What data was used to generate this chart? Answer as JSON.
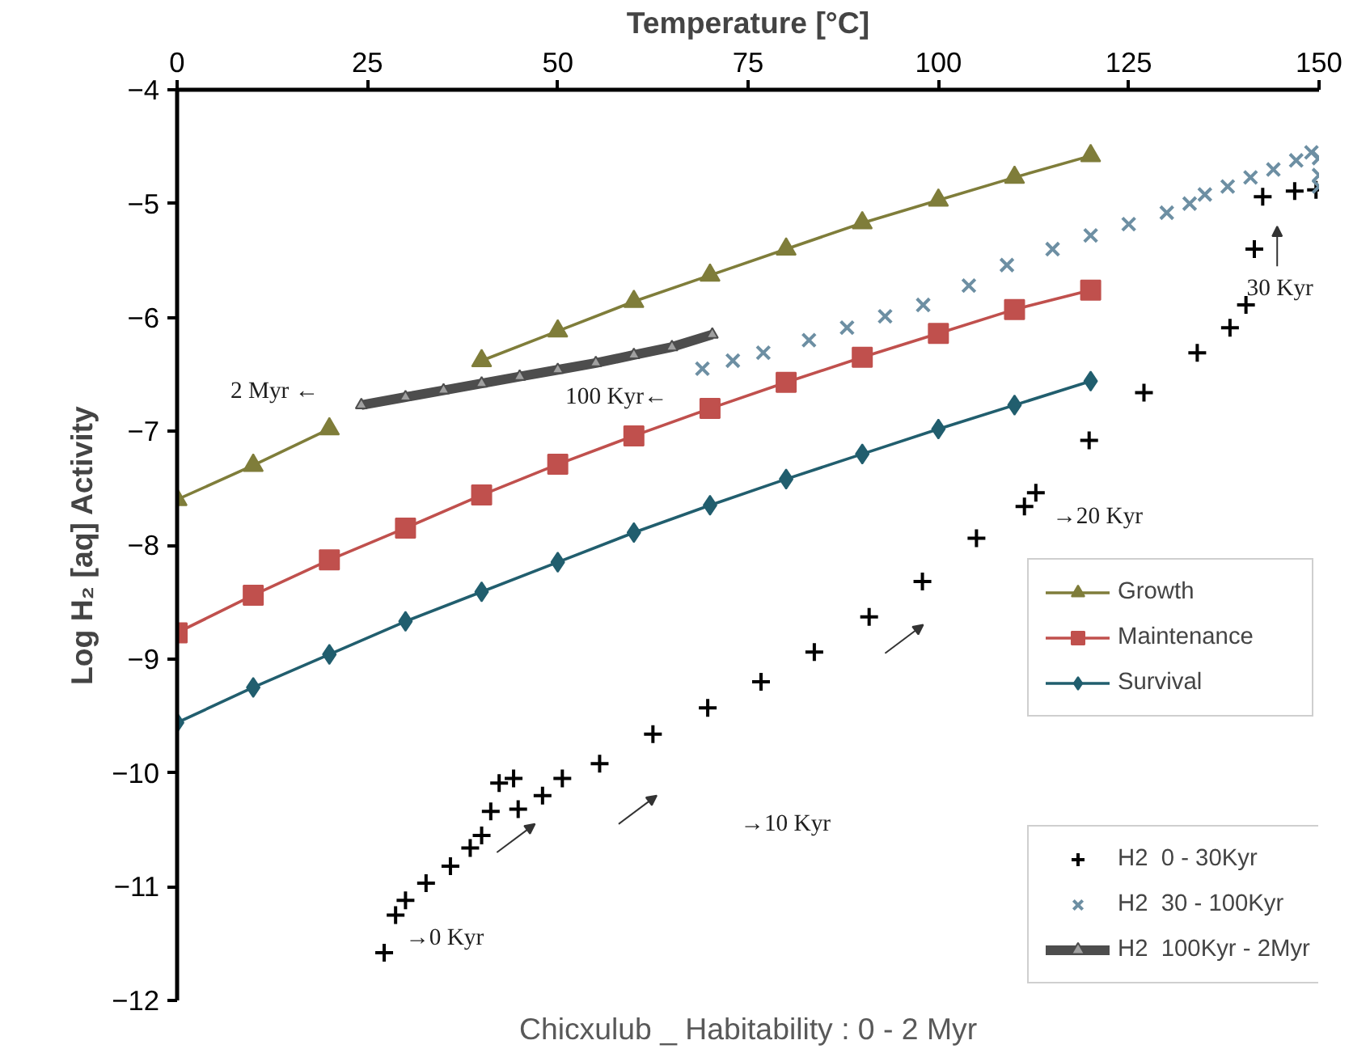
{
  "chart_data": {
    "type": "line",
    "title": "Chicxulub _ Habitability : 0 - 2 Myr",
    "xlabel": "Temperature [°C]",
    "ylabel": "Log H₂ [aq] Activity",
    "xlim": [
      0,
      150
    ],
    "xticks": [
      0,
      25,
      50,
      75,
      100,
      125,
      150
    ],
    "ylim": [
      -12,
      -4
    ],
    "yticks": [
      -12,
      -11,
      -10,
      -9,
      -8,
      -7,
      -6,
      -5,
      -4
    ],
    "grid": false,
    "legend": "right",
    "x": [
      0,
      10,
      20,
      30,
      40,
      50,
      60,
      70,
      80,
      90,
      100,
      110,
      120
    ],
    "series": [
      {
        "name": "Growth",
        "marker": "triangle",
        "line_style": "solid",
        "color": "#7f7d3a",
        "values": [
          -7.6,
          -7.3,
          -6.98,
          null,
          -6.38,
          -6.12,
          -5.86,
          -5.63,
          -5.4,
          -5.17,
          -4.97,
          -4.77,
          -4.58
        ]
      },
      {
        "name": "Maintenance",
        "marker": "square",
        "line_style": "solid",
        "color": "#c0504d",
        "values": [
          -8.77,
          -8.44,
          -8.13,
          -7.85,
          -7.56,
          -7.29,
          -7.04,
          -6.8,
          -6.57,
          -6.35,
          -6.14,
          -5.93,
          -5.76
        ]
      },
      {
        "name": "Survival",
        "marker": "diamond",
        "line_style": "solid",
        "color": "#215e6e",
        "values": [
          -9.56,
          -9.25,
          -8.96,
          -8.67,
          -8.41,
          -8.15,
          -7.89,
          -7.65,
          -7.42,
          -7.2,
          -6.98,
          -6.77,
          -6.56
        ]
      },
      {
        "name": "H2  0 - 30Kyr",
        "type": "scatter",
        "marker": "cross",
        "color": "#000000",
        "x": [
          27.2,
          28.7,
          30,
          32.7,
          35.9,
          38.5,
          40,
          41.2,
          42.3,
          44.2,
          44.8,
          48,
          50.6,
          55.5,
          62.5,
          69.7,
          76.7,
          83.7,
          90.9,
          97.9,
          105,
          111.3,
          112.8,
          119.8,
          127,
          134,
          138.3,
          140.4,
          141.5,
          142.6,
          146.8,
          149.6
        ],
        "values": [
          -11.58,
          -11.25,
          -11.12,
          -10.97,
          -10.82,
          -10.66,
          -10.55,
          -10.34,
          -10.09,
          -10.05,
          -10.32,
          -10.2,
          -10.05,
          -9.92,
          -9.66,
          -9.43,
          -9.2,
          -8.94,
          -8.63,
          -8.32,
          -7.94,
          -7.66,
          -7.54,
          -7.08,
          -6.66,
          -6.31,
          -6.09,
          -5.89,
          -5.4,
          -4.94,
          -4.89,
          -4.88
        ]
      },
      {
        "name": "H2  30 - 100Kyr",
        "type": "scatter",
        "marker": "x",
        "color": "#6d8fa3",
        "x": [
          69,
          73,
          77,
          83,
          88,
          93,
          98,
          104,
          109,
          115,
          120,
          125,
          130,
          133,
          135,
          138,
          141,
          144,
          147,
          149,
          150,
          150,
          150
        ],
        "values": [
          -6.45,
          -6.38,
          -6.31,
          -6.2,
          -6.09,
          -5.99,
          -5.89,
          -5.72,
          -5.54,
          -5.4,
          -5.28,
          -5.18,
          -5.08,
          -5.0,
          -4.92,
          -4.85,
          -4.77,
          -4.7,
          -4.62,
          -4.55,
          -4.6,
          -4.75,
          -4.85
        ]
      },
      {
        "name": "H2  100Kyr - 2Myr",
        "marker": "triangle",
        "line_style": "solid",
        "color": "#4d4d4d",
        "x": [
          24.2,
          30,
          35,
          40,
          45,
          50,
          55,
          60,
          65,
          70.3
        ],
        "values": [
          -6.77,
          -6.7,
          -6.64,
          -6.58,
          -6.52,
          -6.46,
          -6.4,
          -6.33,
          -6.26,
          -6.15
        ]
      }
    ],
    "annotations": [
      "2 Myr ←",
      "100 Kyr←",
      "30 Kyr",
      "→20 Kyr",
      "→10 Kyr",
      "→0 Kyr"
    ]
  }
}
